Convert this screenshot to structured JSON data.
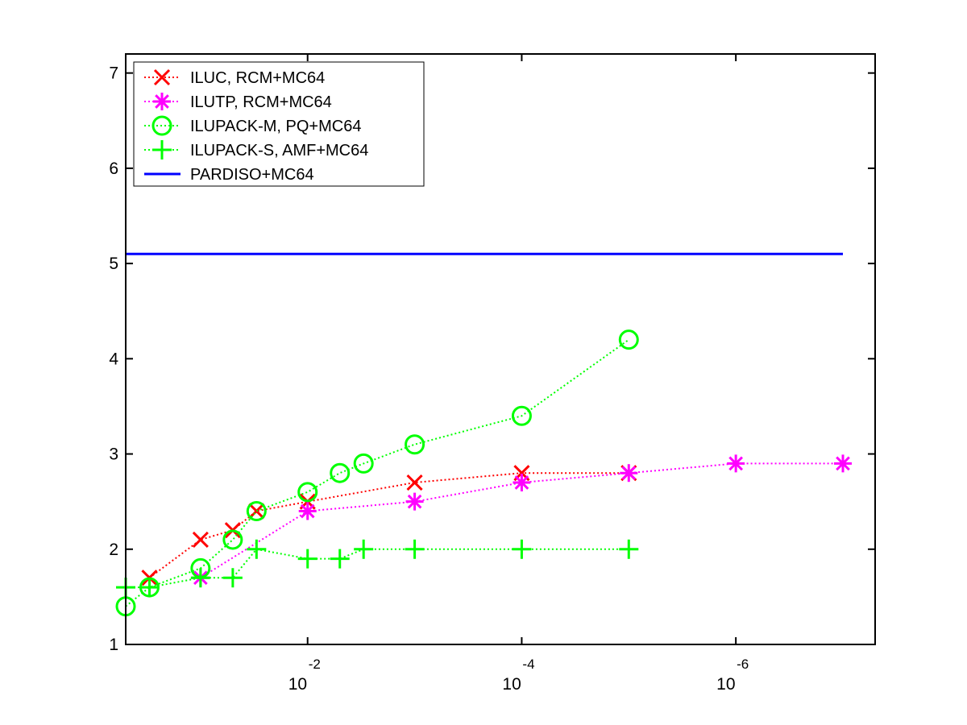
{
  "chart_data": {
    "type": "line",
    "title": "",
    "xlabel": "",
    "ylabel": "",
    "xscale": "log",
    "x_reversed": true,
    "xlim": [
      0.5,
      5e-08
    ],
    "ylim": [
      1,
      7.2
    ],
    "y_ticks": [
      1,
      2,
      3,
      4,
      5,
      6,
      7
    ],
    "x_ticks": [
      {
        "value": 0.01,
        "base": "10",
        "exponent": "-2"
      },
      {
        "value": 0.0001,
        "base": "10",
        "exponent": "-4"
      },
      {
        "value": 1e-06,
        "base": "10",
        "exponent": "-6"
      }
    ],
    "grid": false,
    "legend_position": "top-left",
    "series": [
      {
        "name": "ILUC, RCM+MC64",
        "color": "#ff0000",
        "marker": "x",
        "line_style": "dotted",
        "points": [
          [
            0.3,
            1.7
          ],
          [
            0.1,
            2.1
          ],
          [
            0.05,
            2.2
          ],
          [
            0.03,
            2.4
          ],
          [
            0.01,
            2.5
          ],
          [
            0.001,
            2.7
          ],
          [
            0.0001,
            2.8
          ],
          [
            1e-05,
            2.8
          ]
        ]
      },
      {
        "name": "ILUTP, RCM+MC64",
        "color": "#ff00ff",
        "marker": "asterisk",
        "line_style": "dotted",
        "points": [
          [
            0.1,
            1.7
          ],
          [
            0.01,
            2.4
          ],
          [
            0.001,
            2.5
          ],
          [
            0.0001,
            2.7
          ],
          [
            1e-05,
            2.8
          ],
          [
            1e-06,
            2.9
          ],
          [
            1e-07,
            2.9
          ]
        ]
      },
      {
        "name": "ILUPACK-M, PQ+MC64",
        "color": "#00ff00",
        "marker": "circle",
        "line_style": "dotted",
        "points": [
          [
            0.5,
            1.4
          ],
          [
            0.3,
            1.6
          ],
          [
            0.1,
            1.8
          ],
          [
            0.05,
            2.1
          ],
          [
            0.03,
            2.4
          ],
          [
            0.01,
            2.6
          ],
          [
            0.005,
            2.8
          ],
          [
            0.003,
            2.9
          ],
          [
            0.001,
            3.1
          ],
          [
            0.0001,
            3.4
          ],
          [
            1e-05,
            4.2
          ]
        ]
      },
      {
        "name": "ILUPACK-S, AMF+MC64",
        "color": "#00ff00",
        "marker": "plus",
        "line_style": "dotted",
        "points": [
          [
            0.5,
            1.6
          ],
          [
            0.3,
            1.6
          ],
          [
            0.1,
            1.7
          ],
          [
            0.05,
            1.7
          ],
          [
            0.03,
            2.0
          ],
          [
            0.01,
            1.9
          ],
          [
            0.005,
            1.9
          ],
          [
            0.003,
            2.0
          ],
          [
            0.001,
            2.0
          ],
          [
            0.0001,
            2.0
          ],
          [
            1e-05,
            2.0
          ]
        ]
      },
      {
        "name": "PARDISO+MC64",
        "color": "#0000ff",
        "marker": "none",
        "line_style": "solid",
        "points": [
          [
            0.5,
            5.1
          ],
          [
            1e-07,
            5.1
          ]
        ]
      }
    ]
  }
}
